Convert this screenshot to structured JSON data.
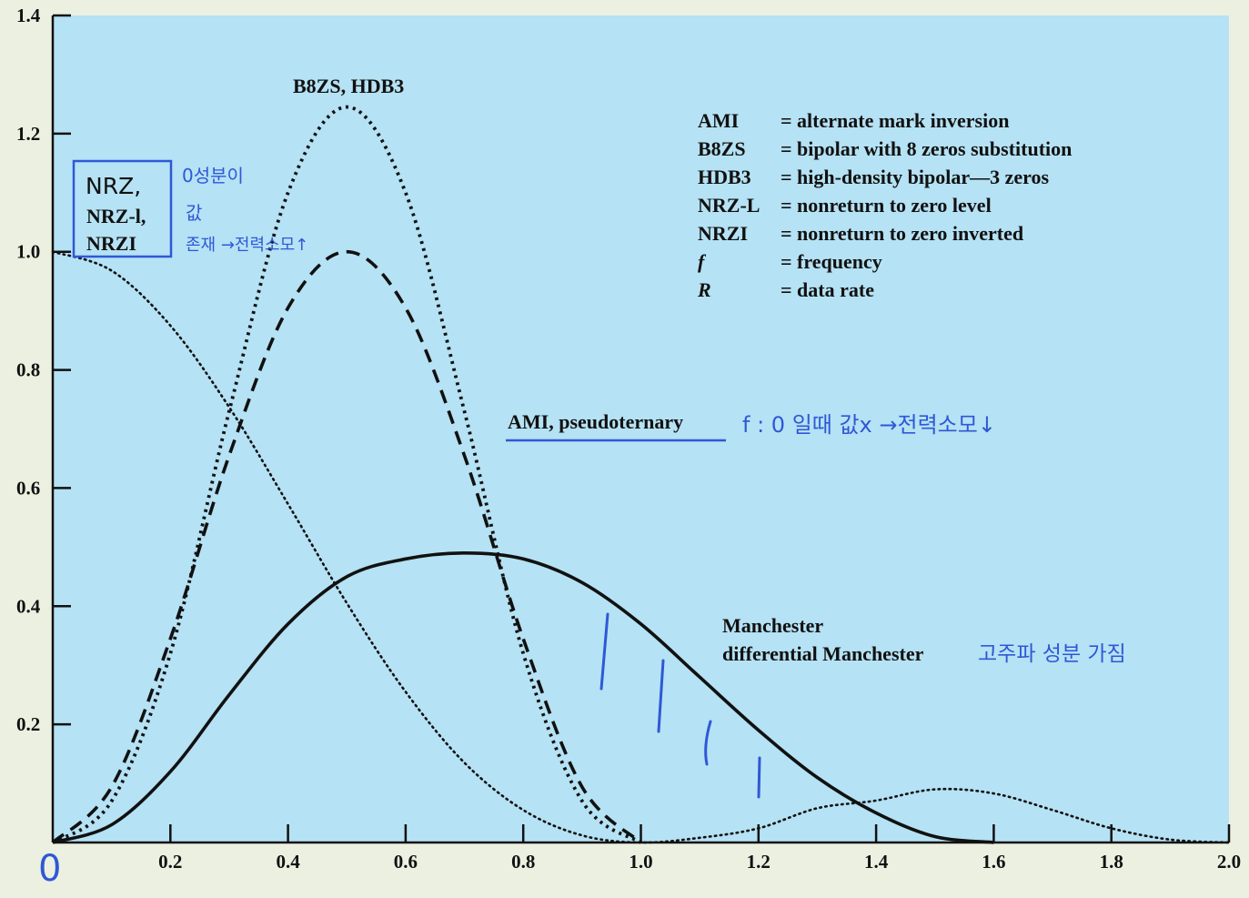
{
  "chart_data": {
    "type": "line",
    "xlim": [
      0,
      2.0
    ],
    "ylim": [
      0,
      1.4
    ],
    "x_ticks": [
      "0.2",
      "0.4",
      "0.6",
      "0.8",
      "1.0",
      "1.2",
      "1.4",
      "1.6",
      "1.8",
      "2.0"
    ],
    "y_ticks": [
      "0.2",
      "0.4",
      "0.6",
      "0.8",
      "1.0",
      "1.2",
      "1.4"
    ],
    "origin_label": "0",
    "background_color": "#b5e2f4",
    "grid": false,
    "legend": {
      "placement": "top-right",
      "entries": [
        {
          "abbr": "AMI",
          "text": "= alternate mark inversion",
          "italic": false
        },
        {
          "abbr": "B8ZS",
          "text": "= bipolar with 8 zeros substitution",
          "italic": false
        },
        {
          "abbr": "HDB3",
          "text": "= high-density bipolar—3 zeros",
          "italic": false
        },
        {
          "abbr": "NRZ-L",
          "text": "= nonreturn to zero level",
          "italic": false
        },
        {
          "abbr": "NRZI",
          "text": "= nonreturn to zero inverted",
          "italic": false
        },
        {
          "abbr": "f",
          "text": "= frequency",
          "italic": true
        },
        {
          "abbr": "R",
          "text": "= data rate",
          "italic": true
        }
      ]
    },
    "series": [
      {
        "name": "NRZ-l, NRZI",
        "line_style": "dotted",
        "x": [
          0,
          0.1,
          0.2,
          0.3,
          0.4,
          0.5,
          0.6,
          0.7,
          0.8,
          0.9,
          1.0,
          1.1,
          1.2,
          1.3,
          1.4,
          1.5,
          1.6,
          1.7,
          1.8,
          1.9,
          2.0
        ],
        "y": [
          1.0,
          0.968,
          0.875,
          0.737,
          0.573,
          0.405,
          0.255,
          0.135,
          0.055,
          0.012,
          0.0,
          0.008,
          0.024,
          0.058,
          0.071,
          0.09,
          0.083,
          0.055,
          0.024,
          0.005,
          0.0
        ]
      },
      {
        "name": "AMI, pseudoternary",
        "line_style": "dashed",
        "x": [
          0,
          0.1,
          0.2,
          0.3,
          0.4,
          0.5,
          0.6,
          0.7,
          0.8,
          0.9,
          1.0
        ],
        "y": [
          0.0,
          0.094,
          0.345,
          0.655,
          0.905,
          1.0,
          0.905,
          0.655,
          0.345,
          0.094,
          0.0
        ]
      },
      {
        "name": "B8ZS, HDB3",
        "line_style": "short-dash",
        "x": [
          0,
          0.1,
          0.2,
          0.3,
          0.4,
          0.5,
          0.6,
          0.7,
          0.8,
          0.9,
          1.0
        ],
        "y": [
          0.0,
          0.07,
          0.32,
          0.73,
          1.1,
          1.245,
          1.1,
          0.73,
          0.32,
          0.07,
          0.0
        ]
      },
      {
        "name": "Manchester, differential Manchester",
        "line_style": "solid",
        "x": [
          0,
          0.1,
          0.2,
          0.3,
          0.4,
          0.5,
          0.6,
          0.7,
          0.8,
          0.9,
          1.0,
          1.1,
          1.2,
          1.3,
          1.4,
          1.5,
          1.6
        ],
        "y": [
          0.0,
          0.03,
          0.12,
          0.25,
          0.37,
          0.45,
          0.48,
          0.49,
          0.48,
          0.44,
          0.37,
          0.28,
          0.19,
          0.11,
          0.05,
          0.01,
          0.0
        ]
      }
    ],
    "curve_labels": {
      "nrz": [
        "NRZ,",
        "NRZ-l,",
        "NRZI"
      ],
      "b8zs": "B8ZS, HDB3",
      "ami": "AMI, pseudoternary",
      "manchester": [
        "Manchester",
        "differential Manchester"
      ]
    },
    "handwritten_notes": {
      "nrz": [
        "0성분이",
        "값",
        "존재 →전력소모↑"
      ],
      "ami": "f : 0 일때 값x →전력소모↓",
      "manchester": "고주파 성분 가짐",
      "color": "#2f58d6"
    }
  }
}
